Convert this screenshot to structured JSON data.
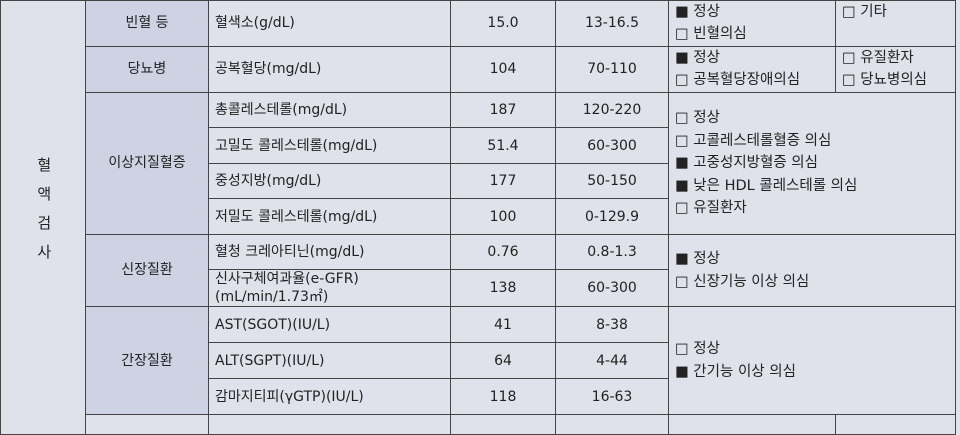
{
  "section": "혈액검사",
  "groups": [
    {
      "name": "빈혈 등",
      "tests": [
        {
          "item": "혈색소(g/dL)",
          "result": "15.0",
          "reference": "13-16.5"
        }
      ],
      "judgment": [
        "■ 정상",
        "□ 빈혈의심"
      ],
      "other": [
        "□ 기타"
      ]
    },
    {
      "name": "당뇨병",
      "tests": [
        {
          "item": "공복혈당(mg/dL)",
          "result": "104",
          "reference": "70-110"
        }
      ],
      "judgment": [
        "■ 정상",
        "□ 공복혈당장애의심"
      ],
      "other": [
        "□ 유질환자",
        "□ 당뇨병의심"
      ]
    },
    {
      "name": "이상지질혈증",
      "tests": [
        {
          "item": "총콜레스테롤(mg/dL)",
          "result": "187",
          "reference": "120-220"
        },
        {
          "item": "고밀도 콜레스테롤(mg/dL)",
          "result": "51.4",
          "reference": "60-300"
        },
        {
          "item": "중성지방(mg/dL)",
          "result": "177",
          "reference": "50-150"
        },
        {
          "item": "저밀도 콜레스테롤(mg/dL)",
          "result": "100",
          "reference": "0-129.9"
        }
      ],
      "judgment": [
        "□ 정상",
        "□ 고콜레스테롤혈증 의심",
        "■ 고중성지방혈증 의심",
        "■ 낮은 HDL 콜레스테롤 의심",
        "□ 유질환자"
      ]
    },
    {
      "name": "신장질환",
      "tests": [
        {
          "item": "혈청 크레아티닌(mg/dL)",
          "result": "0.76",
          "reference": "0.8-1.3"
        },
        {
          "item": "신사구체여과율(e-GFR)\n(mL/min/1.73㎡)",
          "result": "138",
          "reference": "60-300"
        }
      ],
      "judgment": [
        "■ 정상",
        "□ 신장기능 이상 의심"
      ]
    },
    {
      "name": "간장질환",
      "tests": [
        {
          "item": "AST(SGOT)(IU/L)",
          "result": "41",
          "reference": "8-38"
        },
        {
          "item": "ALT(SGPT)(IU/L)",
          "result": "64",
          "reference": "4-44"
        },
        {
          "item": "감마지티피(γGTP)(IU/L)",
          "result": "118",
          "reference": "16-63"
        }
      ],
      "judgment": [
        "□ 정상",
        "■ 간기능 이상 의심"
      ]
    }
  ]
}
